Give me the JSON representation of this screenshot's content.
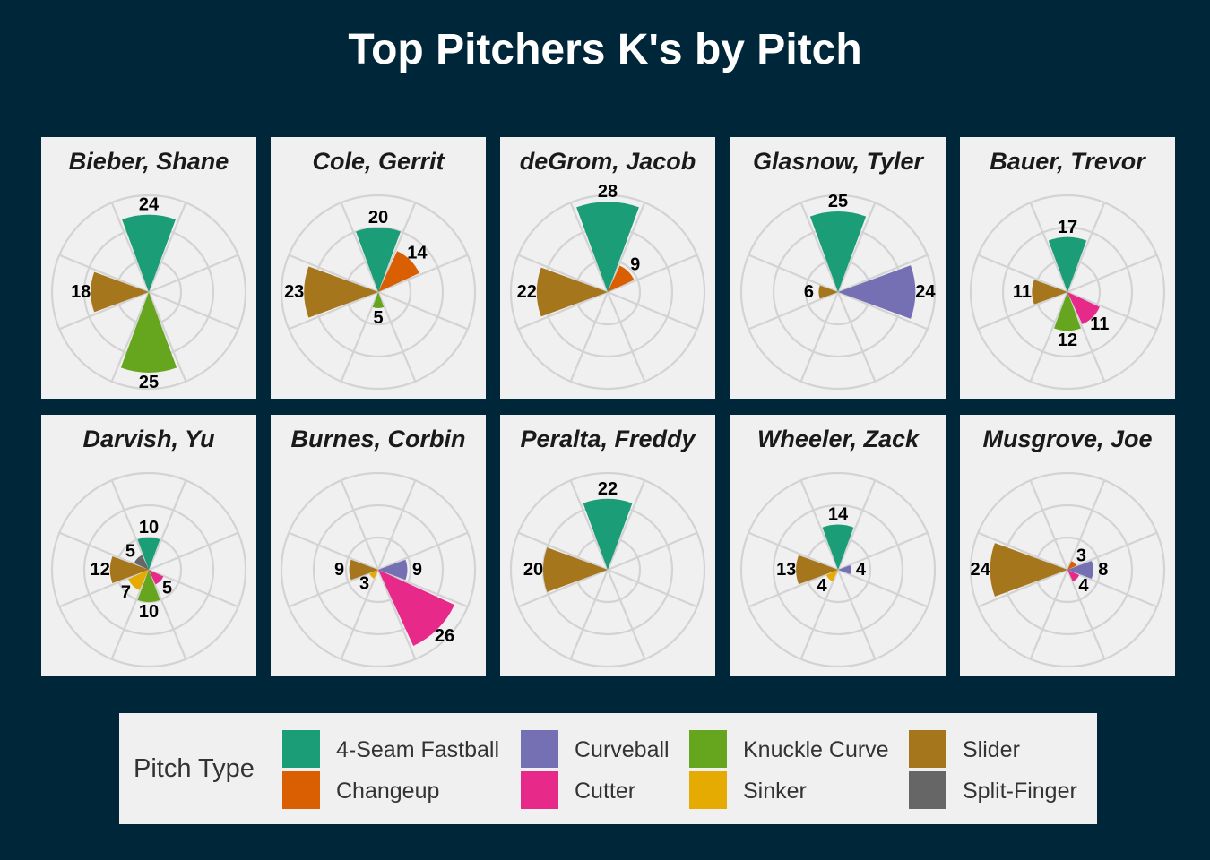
{
  "chart_data": {
    "type": "polar-bar",
    "title": "Top Pitchers K's by Pitch",
    "legend": {
      "title": "Pitch Type",
      "position": "bottom",
      "items": [
        {
          "name": "4-Seam Fastball",
          "color": "#1b9e77"
        },
        {
          "name": "Changeup",
          "color": "#d95f02"
        },
        {
          "name": "Curveball",
          "color": "#7570b3"
        },
        {
          "name": "Cutter",
          "color": "#e7298a"
        },
        {
          "name": "Knuckle Curve",
          "color": "#66a61e"
        },
        {
          "name": "Sinker",
          "color": "#e6ab02"
        },
        {
          "name": "Slider",
          "color": "#a6761d"
        },
        {
          "name": "Split-Finger",
          "color": "#666666"
        }
      ]
    },
    "categories": [
      "4-Seam Fastball",
      "Changeup",
      "Curveball",
      "Cutter",
      "Knuckle Curve",
      "Sinker",
      "Slider",
      "Split-Finger"
    ],
    "radial_max": 30,
    "grid": true,
    "panels": [
      {
        "pitcher": "Bieber, Shane",
        "values": {
          "4-Seam Fastball": 24,
          "Knuckle Curve": 25,
          "Slider": 18
        }
      },
      {
        "pitcher": "Cole, Gerrit",
        "values": {
          "4-Seam Fastball": 20,
          "Changeup": 14,
          "Knuckle Curve": 5,
          "Slider": 23
        }
      },
      {
        "pitcher": "deGrom, Jacob",
        "values": {
          "4-Seam Fastball": 28,
          "Changeup": 9,
          "Slider": 22
        }
      },
      {
        "pitcher": "Glasnow, Tyler",
        "values": {
          "4-Seam Fastball": 25,
          "Curveball": 24,
          "Slider": 6
        }
      },
      {
        "pitcher": "Bauer, Trevor",
        "values": {
          "4-Seam Fastball": 17,
          "Cutter": 11,
          "Knuckle Curve": 12,
          "Slider": 11
        }
      },
      {
        "pitcher": "Darvish, Yu",
        "values": {
          "4-Seam Fastball": 10,
          "Cutter": 5,
          "Knuckle Curve": 10,
          "Sinker": 7,
          "Slider": 12,
          "Split-Finger": 5
        }
      },
      {
        "pitcher": "Burnes, Corbin",
        "values": {
          "Curveball": 9,
          "Cutter": 26,
          "Sinker": 3,
          "Slider": 9
        }
      },
      {
        "pitcher": "Peralta, Freddy",
        "values": {
          "4-Seam Fastball": 22,
          "Slider": 20
        }
      },
      {
        "pitcher": "Wheeler, Zack",
        "values": {
          "4-Seam Fastball": 14,
          "Curveball": 4,
          "Sinker": 4,
          "Slider": 13
        }
      },
      {
        "pitcher": "Musgrove, Joe",
        "values": {
          "Changeup": 3,
          "Curveball": 8,
          "Cutter": 4,
          "Slider": 24
        }
      }
    ]
  }
}
